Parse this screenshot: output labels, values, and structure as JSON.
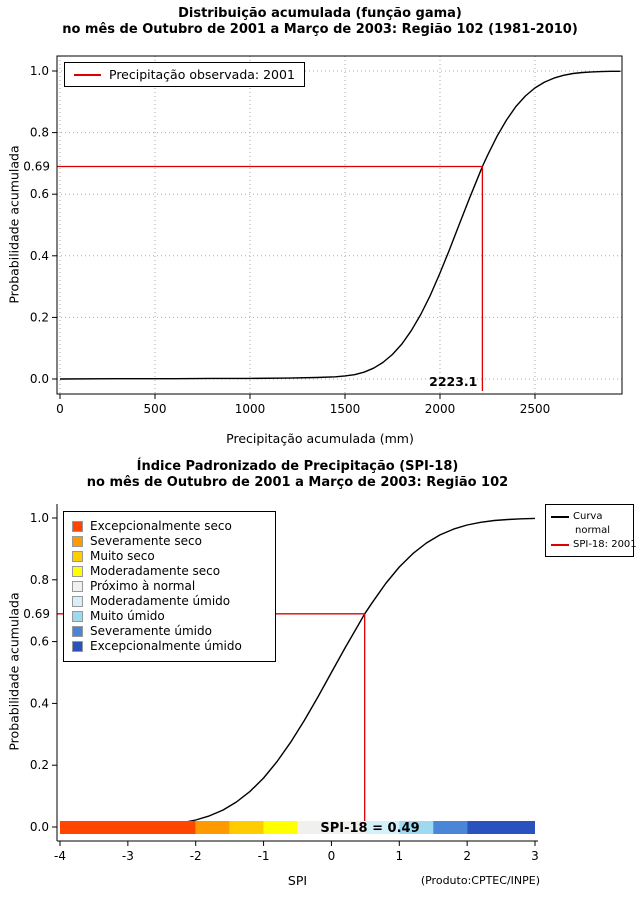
{
  "chart_data": [
    {
      "type": "line",
      "title_line1": "Distribuição acumulada (função gama)",
      "title_line2": "no mês de Outubro de 2001 a Março de 2003: Região 102 (1981-2010)",
      "xlabel": "Precipitação acumulada (mm)",
      "ylabel": "Probabilidade acumulada",
      "xlim": [
        0,
        2950
      ],
      "ylim": [
        0,
        1
      ],
      "x_ticks": [
        0,
        500,
        1000,
        1500,
        2000,
        2500
      ],
      "y_ticks": [
        "0.0",
        "0.2",
        "0.4",
        "0.6",
        "0.8",
        "1.0"
      ],
      "grid": true,
      "legend": {
        "position": "top-left",
        "entries": [
          {
            "label": "Precipitação observada: 2001",
            "color": "#dd0000",
            "type": "line"
          }
        ]
      },
      "series": [
        {
          "name": "Distribuição acumulada (função gama)",
          "color": "#000000",
          "points": [
            [
              0,
              0
            ],
            [
              300,
              0.001
            ],
            [
              600,
              0.001
            ],
            [
              800,
              0.002
            ],
            [
              1000,
              0.002
            ],
            [
              1200,
              0.003
            ],
            [
              1350,
              0.005
            ],
            [
              1450,
              0.007
            ],
            [
              1500,
              0.01
            ],
            [
              1550,
              0.014
            ],
            [
              1600,
              0.022
            ],
            [
              1650,
              0.035
            ],
            [
              1700,
              0.054
            ],
            [
              1750,
              0.08
            ],
            [
              1800,
              0.114
            ],
            [
              1850,
              0.158
            ],
            [
              1900,
              0.211
            ],
            [
              1950,
              0.273
            ],
            [
              2000,
              0.344
            ],
            [
              2050,
              0.42
            ],
            [
              2100,
              0.5
            ],
            [
              2150,
              0.579
            ],
            [
              2200,
              0.655
            ],
            [
              2223.1,
              0.69
            ],
            [
              2250,
              0.726
            ],
            [
              2300,
              0.788
            ],
            [
              2350,
              0.841
            ],
            [
              2400,
              0.885
            ],
            [
              2450,
              0.919
            ],
            [
              2500,
              0.945
            ],
            [
              2550,
              0.964
            ],
            [
              2600,
              0.977
            ],
            [
              2650,
              0.986
            ],
            [
              2700,
              0.992
            ],
            [
              2750,
              0.995
            ],
            [
              2800,
              0.997
            ],
            [
              2850,
              0.998
            ],
            [
              2900,
              0.999
            ],
            [
              2950,
              0.999
            ]
          ]
        }
      ],
      "annotation": {
        "x": 2223.1,
        "y": 0.69,
        "x_label": "2223.1",
        "y_label": "0.69",
        "color": "#dd0000"
      }
    },
    {
      "type": "line",
      "title_line1": "Índice Padronizado de Precipitação (SPI-18)",
      "title_line2": "no mês de Outubro de 2001 a Março de 2003: Região 102",
      "xlabel": "SPI",
      "ylabel": "Probabilidade acumulada",
      "xlim": [
        -4,
        3
      ],
      "ylim": [
        0,
        1
      ],
      "x_ticks": [
        -4,
        -3,
        -2,
        -1,
        0,
        1,
        2,
        3
      ],
      "y_ticks": [
        "0.0",
        "0.2",
        "0.4",
        "0.6",
        "0.8",
        "1.0"
      ],
      "grid": false,
      "legend_categories": [
        {
          "label": "Excepcionalmente seco",
          "color": "#ff4500"
        },
        {
          "label": "Severamente seco",
          "color": "#ff9900"
        },
        {
          "label": "Muito seco",
          "color": "#ffcc00"
        },
        {
          "label": "Moderadamente seco",
          "color": "#ffff00"
        },
        {
          "label": "Próximo à normal",
          "color": "#f0f0ee"
        },
        {
          "label": "Moderadamente úmido",
          "color": "#d4f0fb"
        },
        {
          "label": "Muito úmido",
          "color": "#9fd9f0"
        },
        {
          "label": "Severamente úmido",
          "color": "#4a86d8"
        },
        {
          "label": "Excepcionalmente úmido",
          "color": "#2a52be"
        }
      ],
      "legend_lines": [
        {
          "label_lines": [
            "Curva",
            "normal"
          ],
          "color": "#000000"
        },
        {
          "label_lines": [
            "SPI-18: 2001"
          ],
          "color": "#dd0000"
        }
      ],
      "series": [
        {
          "name": "Curva normal",
          "color": "#000000",
          "points": [
            [
              -4,
              0.0
            ],
            [
              -3.8,
              0.0001
            ],
            [
              -3.6,
              0.0002
            ],
            [
              -3.4,
              0.0003
            ],
            [
              -3.2,
              0.0007
            ],
            [
              -3,
              0.0013
            ],
            [
              -2.8,
              0.0026
            ],
            [
              -2.6,
              0.0047
            ],
            [
              -2.4,
              0.0082
            ],
            [
              -2.2,
              0.0139
            ],
            [
              -2,
              0.0228
            ],
            [
              -1.8,
              0.0359
            ],
            [
              -1.6,
              0.0548
            ],
            [
              -1.4,
              0.0808
            ],
            [
              -1.2,
              0.1151
            ],
            [
              -1,
              0.1587
            ],
            [
              -0.8,
              0.2119
            ],
            [
              -0.6,
              0.2743
            ],
            [
              -0.4,
              0.3446
            ],
            [
              -0.2,
              0.4207
            ],
            [
              0,
              0.5
            ],
            [
              0.2,
              0.5793
            ],
            [
              0.4,
              0.6554
            ],
            [
              0.49,
              0.69
            ],
            [
              0.6,
              0.7257
            ],
            [
              0.8,
              0.7881
            ],
            [
              1,
              0.8413
            ],
            [
              1.2,
              0.8849
            ],
            [
              1.4,
              0.9192
            ],
            [
              1.6,
              0.9452
            ],
            [
              1.8,
              0.9641
            ],
            [
              2,
              0.9772
            ],
            [
              2.2,
              0.9861
            ],
            [
              2.4,
              0.9918
            ],
            [
              2.6,
              0.9953
            ],
            [
              2.8,
              0.9974
            ],
            [
              3,
              0.9987
            ]
          ]
        }
      ],
      "annotation": {
        "x": 0.49,
        "y": 0.69,
        "y_label": "0.69",
        "bar_label": "SPI-18 = 0.49",
        "color": "#dd0000"
      },
      "colorbar": {
        "segments": [
          {
            "from": -4,
            "to": -2,
            "color": "#ff4500"
          },
          {
            "from": -2,
            "to": -1.5,
            "color": "#ff9900"
          },
          {
            "from": -1.5,
            "to": -1,
            "color": "#ffcc00"
          },
          {
            "from": -1,
            "to": -0.5,
            "color": "#ffff00"
          },
          {
            "from": -0.5,
            "to": 0.5,
            "color": "#f0f0ee"
          },
          {
            "from": 0.5,
            "to": 1,
            "color": "#d4f0fb"
          },
          {
            "from": 1,
            "to": 1.5,
            "color": "#9fd9f0"
          },
          {
            "from": 1.5,
            "to": 2,
            "color": "#4a86d8"
          },
          {
            "from": 2,
            "to": 3,
            "color": "#2a52be"
          }
        ]
      },
      "footnote": "(Produto:CPTEC/INPE)"
    }
  ]
}
